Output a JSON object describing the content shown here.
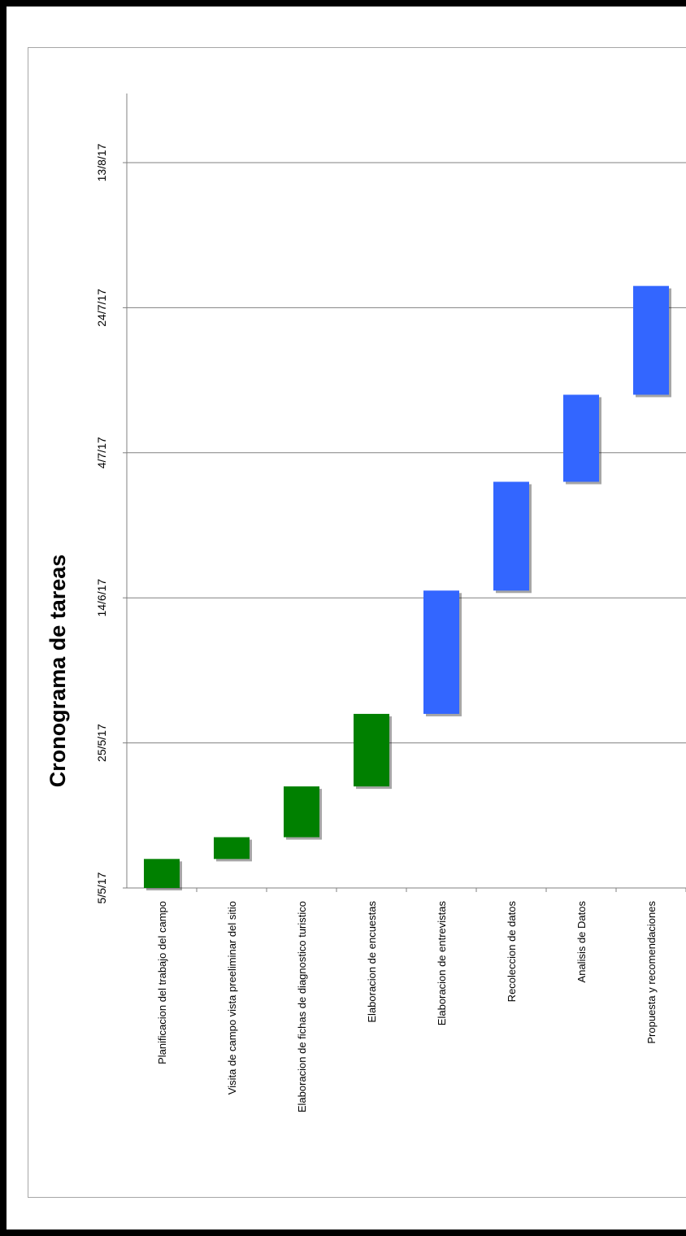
{
  "chart_data": {
    "type": "gantt",
    "title": "Cronograma de tareas",
    "x_ticks": [
      "5/5/17",
      "25/5/17",
      "14/6/17",
      "4/7/17",
      "24/7/17",
      "13/8/17"
    ],
    "xlim": [
      "2017-05-05",
      "2017-08-13"
    ],
    "grid": true,
    "tasks": [
      {
        "label": "Planificacion del trabajo del campo",
        "start": "2017-05-05",
        "end": "2017-05-09",
        "color": "#008000"
      },
      {
        "label": "Visita de campo vista preeliminar del sitio",
        "start": "2017-05-09",
        "end": "2017-05-12",
        "color": "#008000"
      },
      {
        "label": "Elaboracion de fichas de diagnostico turistico",
        "start": "2017-05-12",
        "end": "2017-05-19",
        "color": "#008000"
      },
      {
        "label": "Elaboracion de encuestas",
        "start": "2017-05-19",
        "end": "2017-05-29",
        "color": "#008000"
      },
      {
        "label": "Elaboracion de entrevistas",
        "start": "2017-05-29",
        "end": "2017-06-15",
        "color": "#3366ff"
      },
      {
        "label": "Recoleccion de datos",
        "start": "2017-06-15",
        "end": "2017-06-30",
        "color": "#3366ff"
      },
      {
        "label": "Analisis de Datos",
        "start": "2017-06-30",
        "end": "2017-07-12",
        "color": "#3366ff"
      },
      {
        "label": "Propuesta y recomendaciones",
        "start": "2017-07-12",
        "end": "2017-07-27",
        "color": "#3366ff"
      }
    ]
  }
}
